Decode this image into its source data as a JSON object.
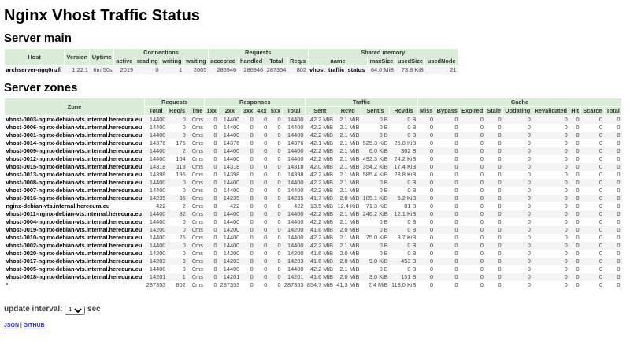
{
  "title": "Nginx Vhost Traffic Status",
  "server_main": {
    "heading": "Server main",
    "groups": [
      "Host",
      "Version",
      "Uptime",
      "Connections",
      "Requests",
      "Shared memory"
    ],
    "columns": [
      "active",
      "reading",
      "writing",
      "waiting",
      "accepted",
      "handled",
      "Total",
      "Req/s",
      "name",
      "maxSize",
      "usedSize",
      "usedNode"
    ],
    "row": [
      "archserver-ngq0nzfi",
      "1.22.1",
      "6m 50s",
      "2019",
      "0",
      "1",
      "2005",
      "286946",
      "286946",
      "287354",
      "802",
      "vhost_traffic_status",
      "64.0 MiB",
      "73.8 KiB",
      "21"
    ]
  },
  "server_zones": {
    "heading": "Server zones",
    "groups": [
      "Zone",
      "Requests",
      "Responses",
      "Traffic",
      "Cache"
    ],
    "columns": [
      "Total",
      "Req/s",
      "Time",
      "1xx",
      "2xx",
      "3xx",
      "4xx",
      "5xx",
      "Total",
      "Sent",
      "Rcvd",
      "Sent/s",
      "Rcvd/s",
      "Miss",
      "Bypass",
      "Expired",
      "Stale",
      "Updating",
      "Revalidated",
      "Hit",
      "Scarce",
      "Total"
    ],
    "rows": [
      [
        "vhost-0003-nginx-debian-vts.internal.herecura.eu",
        "14400",
        "0",
        "0ms",
        "0",
        "14400",
        "0",
        "0",
        "0",
        "14400",
        "42.2 MiB",
        "2.1 MiB",
        "0 B",
        "0 B"
      ],
      [
        "vhost-0006-nginx-debian-vts.internal.herecura.eu",
        "14400",
        "0",
        "0ms",
        "0",
        "14400",
        "0",
        "0",
        "0",
        "14400",
        "42.2 MiB",
        "2.1 MiB",
        "0 B",
        "0 B"
      ],
      [
        "vhost-0001-nginx-debian-vts.internal.herecura.eu",
        "14400",
        "0",
        "0ms",
        "0",
        "14400",
        "0",
        "0",
        "0",
        "14400",
        "42.2 MiB",
        "2.1 MiB",
        "0 B",
        "0 B"
      ],
      [
        "vhost-0014-nginx-debian-vts.internal.herecura.eu",
        "14376",
        "175",
        "0ms",
        "0",
        "14376",
        "0",
        "0",
        "0",
        "14376",
        "42.1 MiB",
        "2.1 MiB",
        "525.3 KiB",
        "25.8 KiB"
      ],
      [
        "vhost-0009-nginx-debian-vts.internal.herecura.eu",
        "14400",
        "2",
        "0ms",
        "0",
        "14400",
        "0",
        "0",
        "0",
        "14400",
        "42.2 MiB",
        "2.1 MiB",
        "6.0 KiB",
        "302 B"
      ],
      [
        "vhost-0012-nginx-debian-vts.internal.herecura.eu",
        "14400",
        "164",
        "0ms",
        "0",
        "14400",
        "0",
        "0",
        "0",
        "14400",
        "42.2 MiB",
        "2.1 MiB",
        "492.3 KiB",
        "24.2 KiB"
      ],
      [
        "vhost-0015-nginx-debian-vts.internal.herecura.eu",
        "14318",
        "118",
        "0ms",
        "0",
        "14318",
        "0",
        "0",
        "0",
        "14318",
        "42.0 MiB",
        "2.1 MiB",
        "354.2 KiB",
        "17.4 KiB"
      ],
      [
        "vhost-0013-nginx-debian-vts.internal.herecura.eu",
        "14398",
        "195",
        "0ms",
        "0",
        "14398",
        "0",
        "0",
        "0",
        "14398",
        "42.2 MiB",
        "2.1 MiB",
        "585.4 KiB",
        "28.8 KiB"
      ],
      [
        "vhost-0008-nginx-debian-vts.internal.herecura.eu",
        "14400",
        "0",
        "0ms",
        "0",
        "14400",
        "0",
        "0",
        "0",
        "14400",
        "42.2 MiB",
        "2.1 MiB",
        "0 B",
        "0 B"
      ],
      [
        "vhost-0007-nginx-debian-vts.internal.herecura.eu",
        "14400",
        "0",
        "0ms",
        "0",
        "14400",
        "0",
        "0",
        "0",
        "14400",
        "42.2 MiB",
        "2.1 MiB",
        "0 B",
        "0 B"
      ],
      [
        "vhost-0016-nginx-debian-vts.internal.herecura.eu",
        "14235",
        "35",
        "0ms",
        "0",
        "14235",
        "0",
        "0",
        "0",
        "14235",
        "41.7 MiB",
        "2.0 MiB",
        "105.1 KiB",
        "5.2 KiB"
      ],
      [
        "nginx-debian-vts.internal.herecura.eu",
        "422",
        "2",
        "0ms",
        "0",
        "422",
        "0",
        "0",
        "0",
        "422",
        "13.5 MiB",
        "12.4 KiB",
        "71.3 KiB",
        "81 B"
      ],
      [
        "vhost-0011-nginx-debian-vts.internal.herecura.eu",
        "14400",
        "82",
        "0ms",
        "0",
        "14400",
        "0",
        "0",
        "0",
        "14400",
        "42.2 MiB",
        "2.1 MiB",
        "246.2 KiB",
        "12.1 KiB"
      ],
      [
        "vhost-0004-nginx-debian-vts.internal.herecura.eu",
        "14400",
        "0",
        "0ms",
        "0",
        "14400",
        "0",
        "0",
        "0",
        "14400",
        "42.2 MiB",
        "2.1 MiB",
        "0 B",
        "0 B"
      ],
      [
        "vhost-0019-nginx-debian-vts.internal.herecura.eu",
        "14200",
        "0",
        "0ms",
        "0",
        "14200",
        "0",
        "0",
        "0",
        "14200",
        "41.6 MiB",
        "2.0 MiB",
        "0 B",
        "0 B"
      ],
      [
        "vhost-0010-nginx-debian-vts.internal.herecura.eu",
        "14400",
        "25",
        "0ms",
        "0",
        "14400",
        "0",
        "0",
        "0",
        "14400",
        "42.2 MiB",
        "2.1 MiB",
        "75.0 KiB",
        "3.7 KiB"
      ],
      [
        "vhost-0002-nginx-debian-vts.internal.herecura.eu",
        "14400",
        "0",
        "0ms",
        "0",
        "14400",
        "0",
        "0",
        "0",
        "14400",
        "42.2 MiB",
        "2.1 MiB",
        "0 B",
        "0 B"
      ],
      [
        "vhost-0020-nginx-debian-vts.internal.herecura.eu",
        "14200",
        "0",
        "0ms",
        "0",
        "14200",
        "0",
        "0",
        "0",
        "14200",
        "41.6 MiB",
        "2.0 MiB",
        "0 B",
        "0 B"
      ],
      [
        "vhost-0017-nginx-debian-vts.internal.herecura.eu",
        "14203",
        "3",
        "0ms",
        "0",
        "14203",
        "0",
        "0",
        "0",
        "14203",
        "41.6 MiB",
        "2.0 MiB",
        "9.0 KiB",
        "453 B"
      ],
      [
        "vhost-0005-nginx-debian-vts.internal.herecura.eu",
        "14400",
        "0",
        "0ms",
        "0",
        "14400",
        "0",
        "0",
        "0",
        "14400",
        "42.2 MiB",
        "2.1 MiB",
        "0 B",
        "0 B"
      ],
      [
        "vhost-0018-nginx-debian-vts.internal.herecura.eu",
        "14201",
        "1",
        "0ms",
        "0",
        "14201",
        "0",
        "0",
        "0",
        "14201",
        "41.6 MiB",
        "2.0 MiB",
        "3.0 KiB",
        "151 B"
      ],
      [
        "*",
        "287353",
        "802",
        "0ms",
        "0",
        "287353",
        "0",
        "0",
        "0",
        "287353",
        "854.7 MiB",
        "41.3 MiB",
        "2.4 MiB",
        "118.0 KiB"
      ]
    ],
    "cache_values": [
      "0",
      "0",
      "0",
      "0",
      "0",
      "0",
      "0",
      "0",
      "0"
    ]
  },
  "controls": {
    "interval_label": "update interval:",
    "interval_value": "1",
    "interval_unit": "sec",
    "json_link": "JSON",
    "separator": "|",
    "github_link": "GITHUB"
  }
}
